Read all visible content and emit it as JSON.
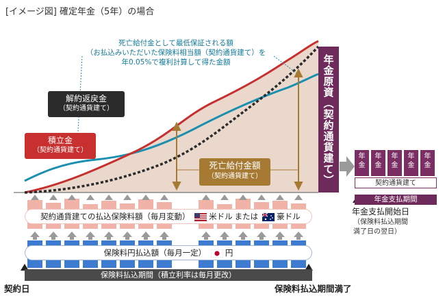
{
  "title": "[イメージ図] 確定年金（5年）の場合",
  "teal_note": {
    "line1": "死亡給付金として最低保証される額",
    "line2": "（お払込みいただいた保険料相当額（契約通貨建て）を",
    "line3": "年0.05%で複利計算して得た金額"
  },
  "labels": {
    "surrender_line1": "解約返戻金",
    "surrender_line2": "（契約通貨建て）",
    "accum_line1": "積立金",
    "accum_line2": "（契約通貨建て）",
    "death_line1": "死亡給付金額",
    "death_line2": "（契約通貨建て）"
  },
  "annuity_principal": "年金原資（契約通貨建て）",
  "annuity_cells": [
    "年金",
    "年金",
    "年金",
    "年金",
    "年金"
  ],
  "annuity_currency": "契約通貨建て",
  "annuity_period": "年金支払期間",
  "annuity_start": "年金支払開始日",
  "annuity_start_note_line1": "（保険料払込期間",
  "annuity_start_note_line2": "満了日の翌日）",
  "pink_band": {
    "text": "契約通貨建ての払込保険料額（毎月変動）",
    "usd": "米ドル",
    "or": "または",
    "aud": "豪ドル"
  },
  "blue_band": {
    "text": "保険料円払込額（毎月一定）",
    "yen": "円"
  },
  "bottom_bar": "保険料払込期間（積立利率は毎月更改）",
  "contract_day": "契約日",
  "end_label": "保険料払込期間満了",
  "colors": {
    "accumulation": "#c7302e",
    "surrender": "#2b2b2b",
    "guarantee": "#1b8fb0",
    "area_fill": "#ead8cc",
    "annuity": "#6e2a5a",
    "death_benefit": "#a67a33",
    "pink_block": "#f1b2a7",
    "blue_block": "#3d7bd0"
  }
}
